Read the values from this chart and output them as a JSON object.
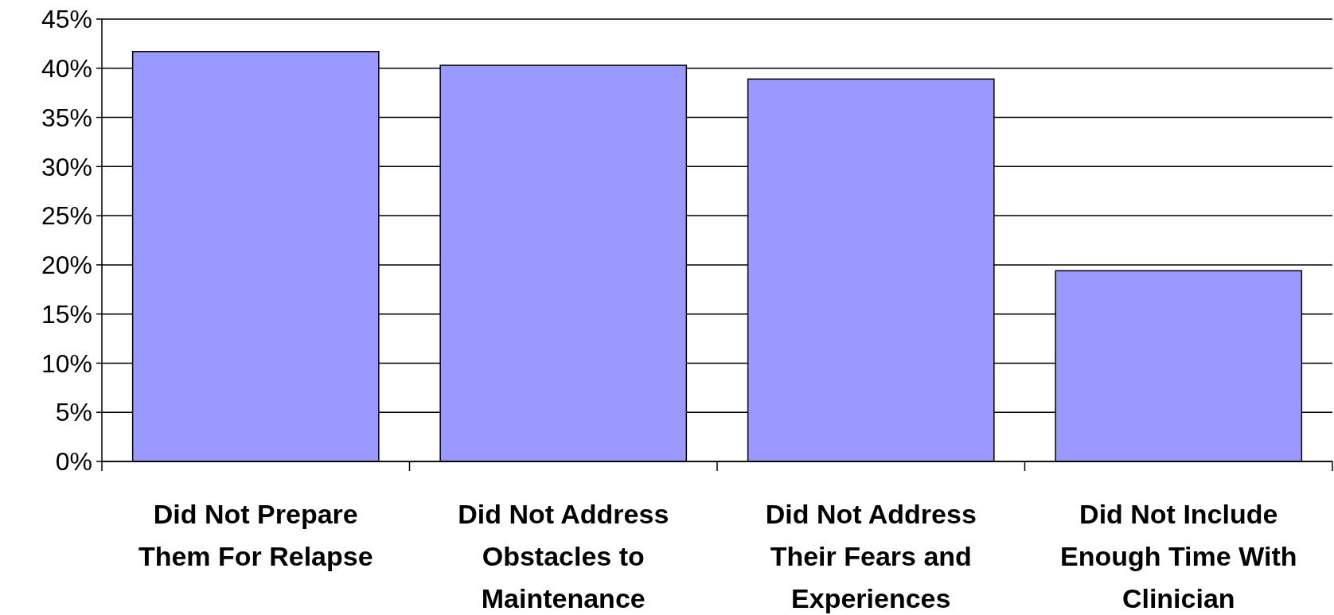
{
  "chart_data": {
    "type": "bar",
    "categories": [
      "Did Not Prepare Them For Relapse",
      "Did Not Address Obstacles to Maintenance",
      "Did Not Address Their Fears and Experiences",
      "Did Not Include Enough Time With Clinician"
    ],
    "values": [
      41.7,
      40.3,
      38.9,
      19.4
    ],
    "color": "#9999ff",
    "ylim": [
      0,
      45
    ],
    "yticks": [
      {
        "value": 0,
        "label": "0%"
      },
      {
        "value": 5,
        "label": "5%"
      },
      {
        "value": 10,
        "label": "10%"
      },
      {
        "value": 15,
        "label": "15%"
      },
      {
        "value": 20,
        "label": "20%"
      },
      {
        "value": 25,
        "label": "25%"
      },
      {
        "value": 30,
        "label": "30%"
      },
      {
        "value": 35,
        "label": "35%"
      },
      {
        "value": 40,
        "label": "40%"
      },
      {
        "value": 45,
        "label": "45%"
      }
    ],
    "grid": "y"
  }
}
